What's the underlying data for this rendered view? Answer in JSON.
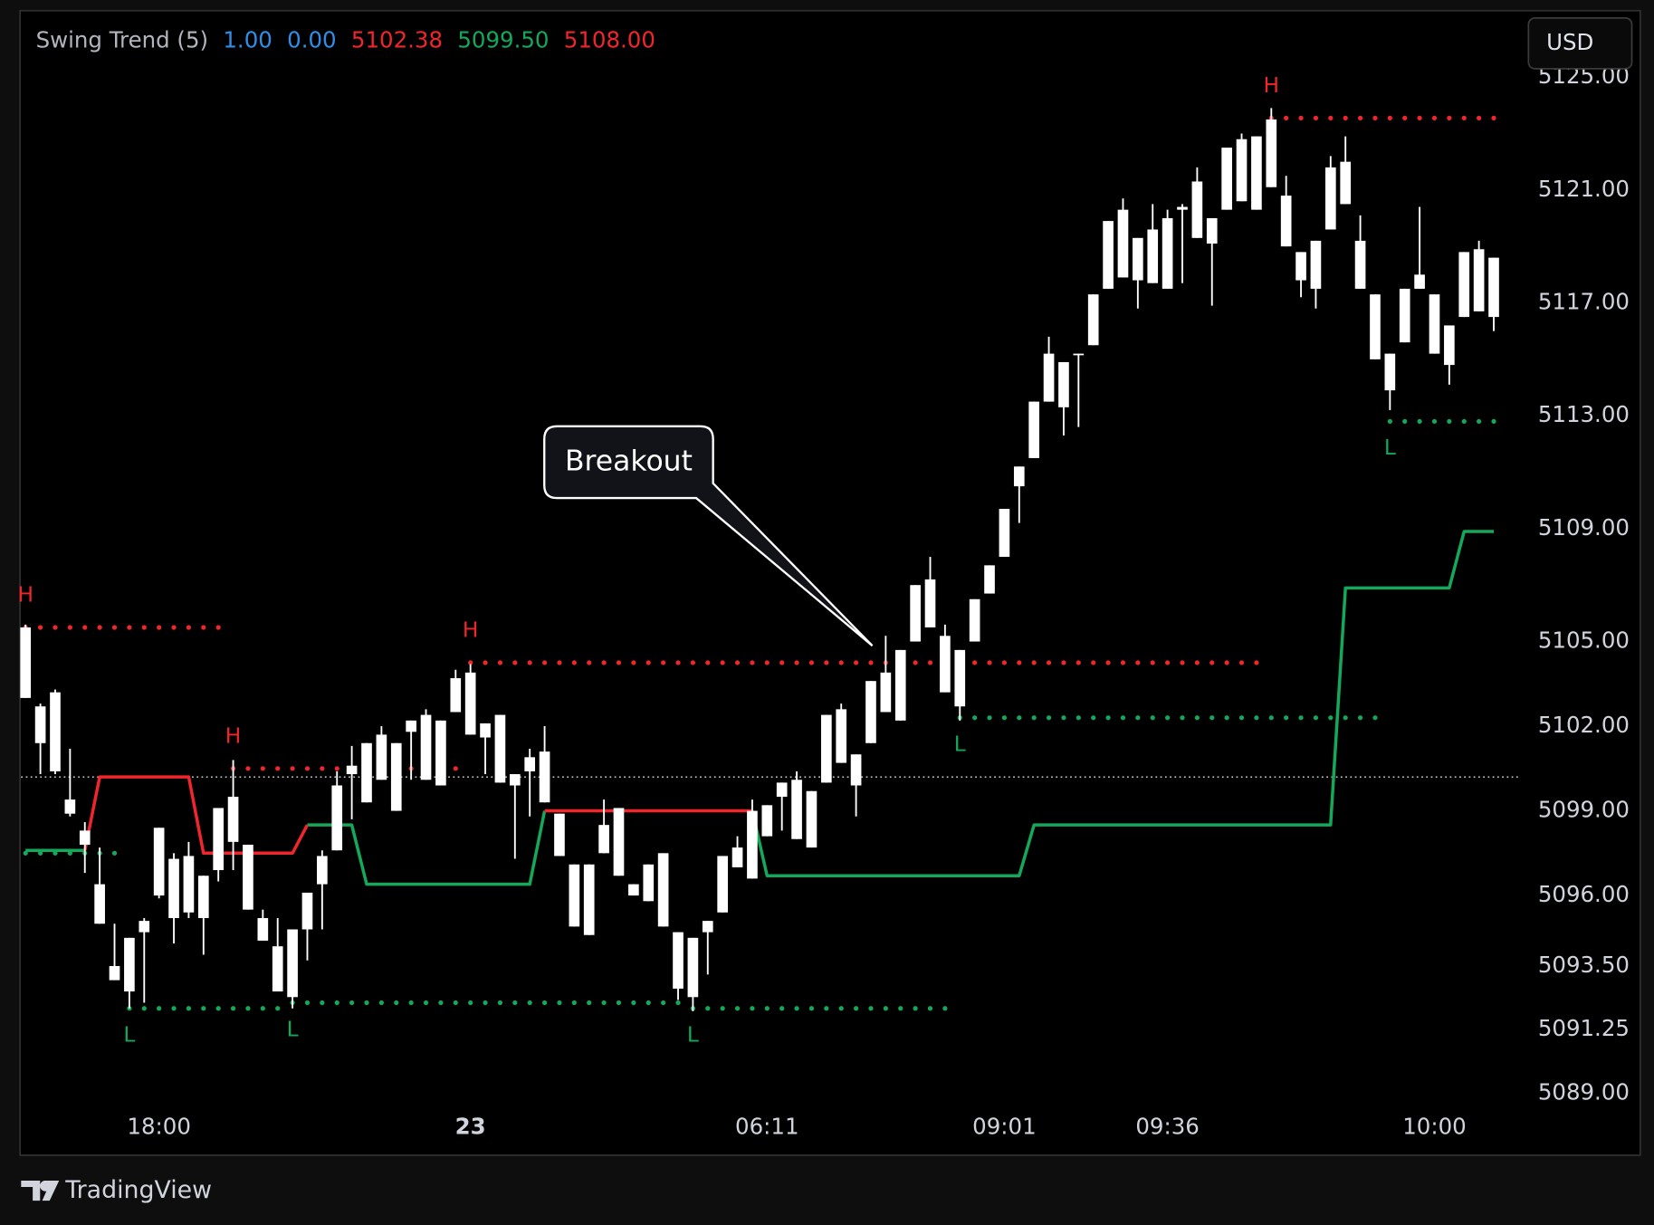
{
  "chart_data": {
    "type": "candlestick",
    "indicator": {
      "name": "Swing Trend (5)",
      "readouts": [
        {
          "value": 1,
          "label": "1.00",
          "color": "#2f8fe8"
        },
        {
          "value": 0,
          "label": "0.00",
          "color": "#2f8fe8"
        },
        {
          "value": 5102.38,
          "label": "5102.38",
          "color": "#f0262c"
        },
        {
          "value": 5099.5,
          "label": "5099.50",
          "color": "#14a85a"
        },
        {
          "value": 5108,
          "label": "5108.00",
          "color": "#f0262c"
        }
      ]
    },
    "currency": "USD",
    "brand": "TradingView",
    "candle_color": "#ffffff",
    "candles": [
      [
        5105.5,
        5105.6,
        5103.0,
        5103.0
      ],
      [
        5102.7,
        5102.8,
        5100.3,
        5101.4
      ],
      [
        5103.2,
        5103.3,
        5100.3,
        5100.4
      ],
      [
        5099.4,
        5101.2,
        5098.8,
        5098.9
      ],
      [
        5098.3,
        5098.6,
        5096.8,
        5097.8
      ],
      [
        5096.4,
        5097.7,
        5095.0,
        5095.0
      ],
      [
        5093.5,
        5095.0,
        5093.0,
        5093.0
      ],
      [
        5094.5,
        5094.5,
        5092.0,
        5092.6
      ],
      [
        5094.7,
        5095.2,
        5092.2,
        5095.1
      ],
      [
        5096.0,
        5098.4,
        5095.9,
        5098.4
      ],
      [
        5097.3,
        5097.5,
        5094.3,
        5095.2
      ],
      [
        5095.4,
        5097.9,
        5095.2,
        5097.4
      ],
      [
        5096.7,
        5096.7,
        5093.9,
        5095.2
      ],
      [
        5096.9,
        5099.1,
        5096.5,
        5099.1
      ],
      [
        5099.5,
        5100.8,
        5096.9,
        5097.9
      ],
      [
        5097.8,
        5097.8,
        5095.5,
        5095.5
      ],
      [
        5095.2,
        5095.5,
        5094.4,
        5094.4
      ],
      [
        5094.2,
        5095.2,
        5092.6,
        5092.6
      ],
      [
        5092.4,
        5094.8,
        5092.0,
        5094.8
      ],
      [
        5094.8,
        5096.1,
        5093.7,
        5096.1
      ],
      [
        5096.4,
        5097.6,
        5094.8,
        5097.4
      ],
      [
        5097.6,
        5100.4,
        5097.6,
        5099.9
      ],
      [
        5100.3,
        5101.3,
        5098.7,
        5100.6
      ],
      [
        5101.4,
        5101.4,
        5099.3,
        5099.3
      ],
      [
        5100.1,
        5102.0,
        5100.1,
        5101.7
      ],
      [
        5101.4,
        5101.4,
        5099.0,
        5099.0
      ],
      [
        5101.8,
        5102.2,
        5100.1,
        5102.2
      ],
      [
        5102.4,
        5102.6,
        5100.1,
        5100.1
      ],
      [
        5099.9,
        5102.2,
        5099.9,
        5102.2
      ],
      [
        5102.5,
        5104.0,
        5102.5,
        5103.7
      ],
      [
        5103.9,
        5104.2,
        5101.7,
        5101.7
      ],
      [
        5101.6,
        5102.1,
        5100.3,
        5102.1
      ],
      [
        5102.4,
        5102.4,
        5100.0,
        5100.0
      ],
      [
        5100.3,
        5100.3,
        5097.3,
        5099.9
      ],
      [
        5100.4,
        5101.2,
        5098.8,
        5100.9
      ],
      [
        5101.1,
        5102.0,
        5099.3,
        5099.3
      ],
      [
        5098.9,
        5098.9,
        5097.4,
        5097.4
      ],
      [
        5097.1,
        5097.1,
        5094.9,
        5094.9
      ],
      [
        5094.6,
        5097.1,
        5094.6,
        5097.1
      ],
      [
        5097.5,
        5099.4,
        5097.5,
        5098.5
      ],
      [
        5099.1,
        5099.1,
        5096.7,
        5096.7
      ],
      [
        5096.4,
        5096.4,
        5096.0,
        5096.0
      ],
      [
        5095.8,
        5097.1,
        5095.8,
        5097.1
      ],
      [
        5097.5,
        5097.5,
        5094.9,
        5094.9
      ],
      [
        5094.7,
        5094.7,
        5092.3,
        5092.7
      ],
      [
        5092.4,
        5094.5,
        5091.9,
        5094.5
      ],
      [
        5094.7,
        5095.1,
        5093.2,
        5095.1
      ],
      [
        5095.4,
        5097.4,
        5095.4,
        5097.4
      ],
      [
        5097.7,
        5098.1,
        5097.0,
        5097.0
      ],
      [
        5096.6,
        5099.4,
        5096.6,
        5099.0
      ],
      [
        5099.2,
        5099.2,
        5098.1,
        5098.1
      ],
      [
        5099.5,
        5100.0,
        5098.3,
        5100.0
      ],
      [
        5100.1,
        5100.4,
        5098.0,
        5098.0
      ],
      [
        5097.7,
        5099.7,
        5097.7,
        5099.7
      ],
      [
        5100.0,
        5102.4,
        5100.0,
        5102.4
      ],
      [
        5102.6,
        5102.8,
        5100.7,
        5100.7
      ],
      [
        5101.0,
        5101.0,
        5098.8,
        5099.9
      ],
      [
        5101.4,
        5103.6,
        5101.4,
        5103.6
      ],
      [
        5102.5,
        5105.2,
        5102.5,
        5103.9
      ],
      [
        5104.7,
        5104.7,
        5102.2,
        5102.2
      ],
      [
        5105.0,
        5107.0,
        5105.0,
        5107.0
      ],
      [
        5107.2,
        5108.0,
        5105.5,
        5105.5
      ],
      [
        5105.2,
        5105.6,
        5103.2,
        5103.2
      ],
      [
        5102.7,
        5104.7,
        5102.2,
        5104.7
      ],
      [
        5105.0,
        5106.5,
        5105.0,
        5106.5
      ],
      [
        5106.7,
        5107.7,
        5106.7,
        5107.7
      ],
      [
        5108.0,
        5109.7,
        5108.0,
        5109.7
      ],
      [
        5110.5,
        5111.2,
        5109.2,
        5111.2
      ],
      [
        5111.5,
        5113.5,
        5111.5,
        5113.5
      ],
      [
        5113.5,
        5115.8,
        5113.5,
        5115.2
      ],
      [
        5114.9,
        5114.9,
        5112.3,
        5113.3
      ],
      [
        5115.2,
        5115.2,
        5112.6,
        5115.2
      ],
      [
        5115.5,
        5117.3,
        5115.5,
        5117.3
      ],
      [
        5117.5,
        5119.9,
        5117.5,
        5119.9
      ],
      [
        5120.3,
        5120.7,
        5117.9,
        5117.9
      ],
      [
        5117.8,
        5119.3,
        5116.8,
        5119.3
      ],
      [
        5119.6,
        5120.5,
        5117.7,
        5117.7
      ],
      [
        5117.5,
        5120.3,
        5117.5,
        5120.0
      ],
      [
        5120.3,
        5120.5,
        5117.7,
        5120.4
      ],
      [
        5121.3,
        5121.8,
        5119.3,
        5119.3
      ],
      [
        5119.1,
        5120.0,
        5116.9,
        5120.0
      ],
      [
        5120.3,
        5122.5,
        5120.3,
        5122.5
      ],
      [
        5122.8,
        5123.0,
        5120.6,
        5120.6
      ],
      [
        5120.3,
        5122.9,
        5120.3,
        5122.9
      ],
      [
        5123.5,
        5123.9,
        5121.1,
        5121.1
      ],
      [
        5120.8,
        5121.5,
        5119.0,
        5119.0
      ],
      [
        5118.8,
        5118.8,
        5117.2,
        5117.8
      ],
      [
        5117.5,
        5119.2,
        5116.8,
        5119.2
      ],
      [
        5119.6,
        5122.2,
        5119.6,
        5121.8
      ],
      [
        5122.0,
        5122.9,
        5120.5,
        5120.5
      ],
      [
        5119.2,
        5120.1,
        5117.5,
        5117.5
      ],
      [
        5117.3,
        5117.3,
        5115.0,
        5115.0
      ],
      [
        5115.2,
        5115.2,
        5113.2,
        5113.9
      ],
      [
        5115.6,
        5117.5,
        5115.6,
        5117.5
      ],
      [
        5117.5,
        5120.4,
        5117.5,
        5118.0
      ],
      [
        5117.3,
        5117.3,
        5115.2,
        5115.2
      ],
      [
        5114.8,
        5116.2,
        5114.1,
        5116.2
      ],
      [
        5116.5,
        5118.8,
        5116.5,
        5118.8
      ],
      [
        5118.9,
        5119.2,
        5116.7,
        5116.7
      ],
      [
        5116.5,
        5118.6,
        5116.0,
        5118.6
      ]
    ],
    "trend_bull": {
      "color": "#14a85a",
      "values": [
        5097.6,
        5097.6,
        5097.6,
        5097.6,
        5097.6,
        null,
        null,
        null,
        null,
        null,
        null,
        null,
        null,
        null,
        null,
        null,
        null,
        null,
        null,
        5098.5,
        5098.5,
        5098.5,
        5098.5,
        5096.4,
        5096.4,
        5096.4,
        5096.4,
        5096.4,
        5096.4,
        5096.4,
        5096.4,
        5096.4,
        5096.4,
        5096.4,
        5096.4,
        5099.0,
        null,
        null,
        null,
        null,
        null,
        null,
        null,
        null,
        null,
        null,
        null,
        null,
        null,
        5099.0,
        5096.7,
        5096.7,
        5096.7,
        5096.7,
        5096.7,
        5096.7,
        5096.7,
        5096.7,
        5096.7,
        5096.7,
        5096.7,
        5096.7,
        5096.7,
        5096.7,
        5096.7,
        5096.7,
        5096.7,
        5096.7,
        5098.5,
        5098.5,
        5098.5,
        5098.5,
        5098.5,
        5098.5,
        5098.5,
        5098.5,
        5098.5,
        5098.5,
        5098.5,
        5098.5,
        5098.5,
        5098.5,
        5098.5,
        5098.5,
        5098.5,
        5098.5,
        5098.5,
        5098.5,
        5098.5,
        5106.9,
        5106.9,
        5106.9,
        5106.9,
        5106.9,
        5106.9,
        5106.9,
        5106.9,
        5108.9,
        5108.9,
        5108.9
      ]
    },
    "trend_bear": {
      "color": "#f0262c",
      "values": [
        null,
        null,
        null,
        null,
        5097.6,
        5100.2,
        5100.2,
        5100.2,
        5100.2,
        5100.2,
        5100.2,
        5100.2,
        5097.5,
        5097.5,
        5097.5,
        5097.5,
        5097.5,
        5097.5,
        5097.5,
        5098.5,
        null,
        null,
        null,
        null,
        null,
        null,
        null,
        null,
        null,
        null,
        null,
        null,
        null,
        null,
        null,
        5099.0,
        5099.0,
        5099.0,
        5099.0,
        5099.0,
        5099.0,
        5099.0,
        5099.0,
        5099.0,
        5099.0,
        5099.0,
        5099.0,
        5099.0,
        5099.0,
        5099.0,
        null,
        null,
        null,
        null,
        null,
        null,
        null,
        null,
        null,
        null,
        null,
        null,
        null,
        null,
        null,
        null,
        null,
        null,
        null,
        null,
        null,
        null,
        null,
        null,
        null,
        null,
        null,
        null,
        null,
        null,
        null,
        null,
        null,
        null,
        null,
        null,
        null,
        null,
        null,
        null,
        null,
        null,
        null,
        null,
        null,
        null,
        null,
        null,
        null,
        null
      ]
    },
    "swing_highs": {
      "color": "#f0262c",
      "levels": [
        {
          "label": "H",
          "value": 5105.5,
          "start": 0,
          "end": 13
        },
        {
          "label": "H",
          "value": 5100.5,
          "start": 14,
          "end": 29
        },
        {
          "label": "H",
          "value": 5104.25,
          "start": 30,
          "end": 83
        },
        {
          "label": "H",
          "value": 5123.55,
          "start": 84,
          "end": 99
        }
      ]
    },
    "swing_lows": {
      "color": "#14a85a",
      "levels": [
        {
          "value": 5097.5,
          "start": 0,
          "end": 6
        },
        {
          "label": "L",
          "value": 5092.0,
          "start": 7,
          "end": 17
        },
        {
          "label": "L",
          "value": 5092.2,
          "start": 18,
          "end": 44
        },
        {
          "label": "L",
          "value": 5092.0,
          "start": 45,
          "end": 62
        },
        {
          "label": "L",
          "value": 5102.3,
          "start": 63,
          "end": 91
        },
        {
          "label": "L",
          "value": 5112.8,
          "start": 92,
          "end": 99
        }
      ]
    },
    "price_line": 5100.2,
    "annotation": {
      "text": "Breakout",
      "index": 57.1,
      "value": 5104.85
    },
    "xlim": [
      -0.3,
      100.7
    ],
    "xticks": [
      {
        "value": 9,
        "label": "18:00"
      },
      {
        "value": 30,
        "label": "23"
      },
      {
        "value": 50,
        "label": "06:11"
      },
      {
        "value": 66,
        "label": "09:01"
      },
      {
        "value": 77,
        "label": "09:36"
      },
      {
        "value": 95,
        "label": "10:00"
      }
    ],
    "ylim": [
      5088.5,
      5125.5
    ],
    "yticks": [
      {
        "value": 5125,
        "label": "5125.00"
      },
      {
        "value": 5121,
        "label": "5121.00"
      },
      {
        "value": 5117,
        "label": "5117.00"
      },
      {
        "value": 5113,
        "label": "5113.00"
      },
      {
        "value": 5109,
        "label": "5109.00"
      },
      {
        "value": 5105,
        "label": "5105.00"
      },
      {
        "value": 5102,
        "label": "5102.00"
      },
      {
        "value": 5099,
        "label": "5099.00"
      },
      {
        "value": 5096,
        "label": "5096.00"
      },
      {
        "value": 5093.5,
        "label": "5093.50"
      },
      {
        "value": 5091.25,
        "label": "5091.25"
      },
      {
        "value": 5089,
        "label": "5089.00"
      }
    ]
  }
}
